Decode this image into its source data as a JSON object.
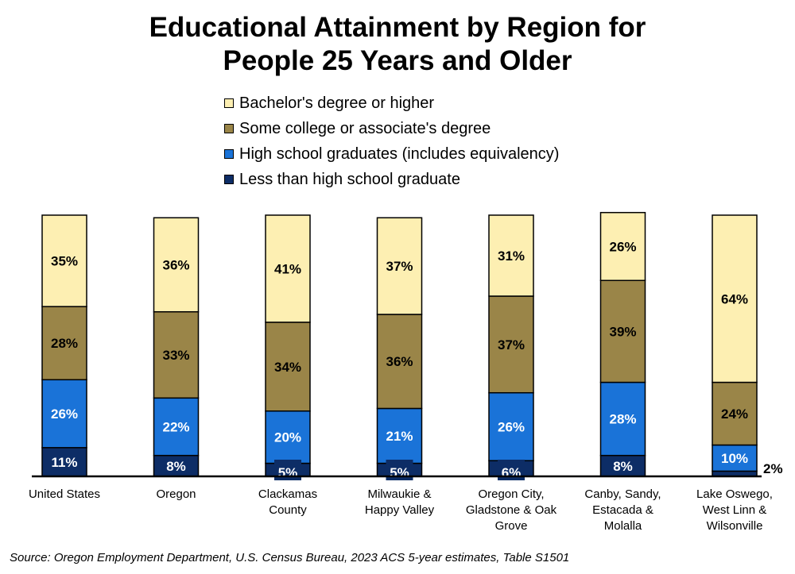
{
  "chart_data": {
    "type": "bar",
    "stacked": true,
    "title": "Educational Attainment by Region for People 25 Years and Older",
    "title_lines": [
      "Educational Attainment by Region for",
      "People 25 Years and Older"
    ],
    "categories": [
      [
        "United States"
      ],
      [
        "Oregon"
      ],
      [
        "Clackamas",
        "County"
      ],
      [
        "Milwaukie &",
        "Happy Valley"
      ],
      [
        "Oregon City,",
        "Gladstone & Oak",
        "Grove"
      ],
      [
        "Canby, Sandy,",
        "Estacada &",
        "Molalla"
      ],
      [
        "Lake Oswego,",
        "West Linn &",
        "Wilsonville"
      ]
    ],
    "series": [
      {
        "name": "Less than high school graduate",
        "color": "#0d2d66",
        "values": [
          11,
          8,
          5,
          5,
          6,
          8,
          2
        ]
      },
      {
        "name": "High school graduates (includes equivalency)",
        "color": "#1a73d8",
        "values": [
          26,
          22,
          20,
          21,
          26,
          28,
          10
        ]
      },
      {
        "name": "Some college or associate's degree",
        "color": "#9a8548",
        "values": [
          28,
          33,
          34,
          36,
          37,
          39,
          24
        ]
      },
      {
        "name": "Bachelor's degree or higher",
        "color": "#fdefb2",
        "values": [
          35,
          36,
          41,
          37,
          31,
          26,
          64
        ]
      }
    ],
    "legend_order": [
      3,
      2,
      1,
      0
    ],
    "ylim": [
      0,
      100
    ],
    "value_suffix": "%",
    "grid": false,
    "legend_position": "top"
  },
  "source": "Source: Oregon Employment Department, U.S. Census Bureau, 2023 ACS 5-year estimates, Table S1501"
}
